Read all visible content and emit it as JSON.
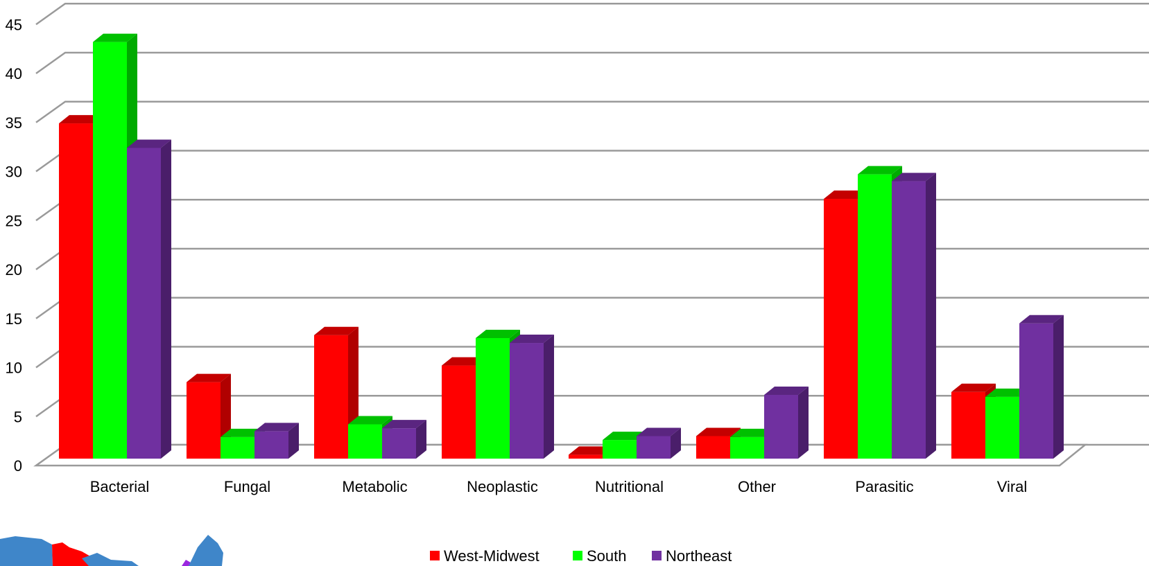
{
  "chart_data": {
    "type": "bar",
    "style": "3d-clustered-column",
    "categories": [
      "Bacterial",
      "Fungal",
      "Metabolic",
      "Neoplastic",
      "Nutritional",
      "Other",
      "Parasitic",
      "Viral"
    ],
    "series": [
      {
        "name": "West-Midwest",
        "color": "#ff0000",
        "side_color": "#b00000",
        "top_color": "#c40000",
        "values": [
          34.2,
          7.8,
          12.6,
          9.5,
          0.4,
          2.3,
          26.5,
          6.8
        ]
      },
      {
        "name": "South",
        "color": "#00ff00",
        "side_color": "#00aa00",
        "top_color": "#00c000",
        "values": [
          42.5,
          2.2,
          3.5,
          12.3,
          1.9,
          2.2,
          29.0,
          6.3
        ]
      },
      {
        "name": "Northeast",
        "color": "#7030a0",
        "side_color": "#4a1e6a",
        "top_color": "#5a2580",
        "values": [
          31.7,
          2.8,
          3.1,
          11.8,
          2.3,
          6.5,
          28.3,
          13.8
        ]
      }
    ],
    "yticks": [
      "0",
      "5",
      "10",
      "15",
      "20",
      "25",
      "30",
      "35",
      "40",
      "45"
    ],
    "ylim": [
      0,
      45
    ],
    "grid": true,
    "legend_position": "bottom"
  }
}
